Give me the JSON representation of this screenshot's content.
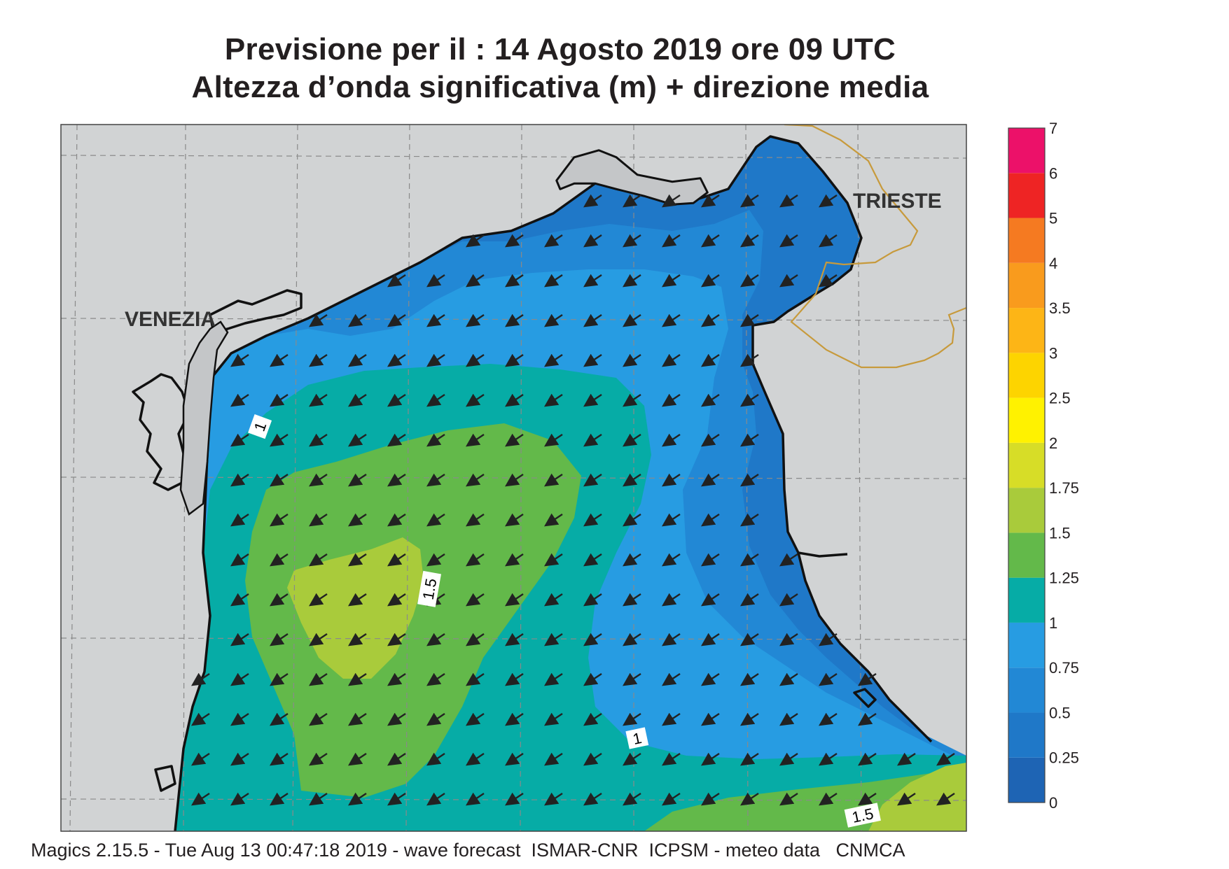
{
  "header": {
    "title_line1": "Previsione per il  :  14   Agosto  2019   ore 09 UTC",
    "title_line2": "Altezza d’onda significativa (m) + direzione media"
  },
  "map": {
    "cities": [
      {
        "name": "VENEZIA"
      },
      {
        "name": "TRIESTE"
      }
    ],
    "contour_labels": [
      "1",
      "1.5",
      "1",
      "1.5"
    ],
    "arrow_direction": "south-west"
  },
  "legend": {
    "levels": [
      "0",
      "0.25",
      "0.5",
      "0.75",
      "1",
      "1.25",
      "1.5",
      "1.75",
      "2",
      "2.5",
      "3",
      "3.5",
      "4",
      "5",
      "6",
      "7"
    ],
    "colors": [
      "#1e64b4",
      "#1f78c8",
      "#2288d5",
      "#279ce2",
      "#06aca6",
      "#63b94a",
      "#a9cb3b",
      "#d7dd27",
      "#fff200",
      "#fdd400",
      "#fdb516",
      "#f99b1d",
      "#f57a21",
      "#ee2424",
      "#ec1169"
    ]
  },
  "footer": {
    "text": "Magics 2.15.5 - Tue Aug 13 00:47:18 2019 - wave forecast  ISMAR-CNR  ICPSM - meteo data   CNMCA"
  }
}
